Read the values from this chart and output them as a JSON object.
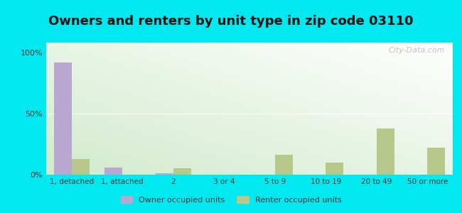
{
  "title": "Owners and renters by unit type in zip code 03110",
  "categories": [
    "1, detached",
    "1, attached",
    "2",
    "3 or 4",
    "5 to 9",
    "10 to 19",
    "20 to 49",
    "50 or more"
  ],
  "owner_values": [
    92,
    6,
    1,
    0,
    0,
    0,
    0,
    0
  ],
  "renter_values": [
    13,
    0,
    5,
    0,
    16,
    10,
    38,
    22
  ],
  "owner_color": "#b8a8d0",
  "renter_color": "#b8c88a",
  "outer_bg": "#00e8f0",
  "yticks": [
    0,
    50,
    100
  ],
  "ytick_labels": [
    "0%",
    "50%",
    "100%"
  ],
  "ylim": [
    0,
    108
  ],
  "legend_owner": "Owner occupied units",
  "legend_renter": "Renter occupied units",
  "title_fontsize": 13,
  "bar_width": 0.35,
  "watermark": "City-Data.com"
}
